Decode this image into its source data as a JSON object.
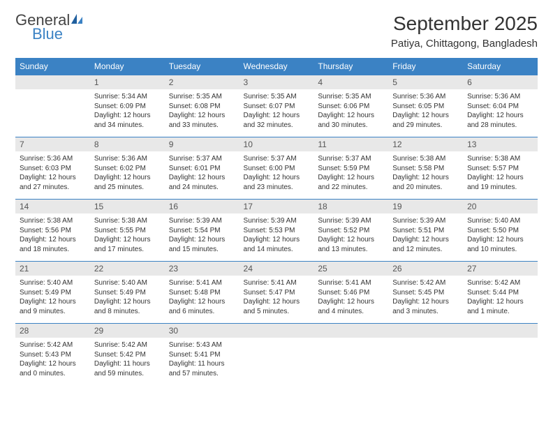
{
  "logo": {
    "general": "General",
    "blue": "Blue"
  },
  "title": "September 2025",
  "location": "Patiya, Chittagong, Bangladesh",
  "colors": {
    "header_bg": "#3b82c4",
    "header_fg": "#ffffff",
    "daynum_bg": "#e8e8e8",
    "text": "#333333"
  },
  "dayNames": [
    "Sunday",
    "Monday",
    "Tuesday",
    "Wednesday",
    "Thursday",
    "Friday",
    "Saturday"
  ],
  "weeks": [
    {
      "nums": [
        "",
        "1",
        "2",
        "3",
        "4",
        "5",
        "6"
      ],
      "cells": [
        "",
        "Sunrise: 5:34 AM\nSunset: 6:09 PM\nDaylight: 12 hours and 34 minutes.",
        "Sunrise: 5:35 AM\nSunset: 6:08 PM\nDaylight: 12 hours and 33 minutes.",
        "Sunrise: 5:35 AM\nSunset: 6:07 PM\nDaylight: 12 hours and 32 minutes.",
        "Sunrise: 5:35 AM\nSunset: 6:06 PM\nDaylight: 12 hours and 30 minutes.",
        "Sunrise: 5:36 AM\nSunset: 6:05 PM\nDaylight: 12 hours and 29 minutes.",
        "Sunrise: 5:36 AM\nSunset: 6:04 PM\nDaylight: 12 hours and 28 minutes."
      ]
    },
    {
      "nums": [
        "7",
        "8",
        "9",
        "10",
        "11",
        "12",
        "13"
      ],
      "cells": [
        "Sunrise: 5:36 AM\nSunset: 6:03 PM\nDaylight: 12 hours and 27 minutes.",
        "Sunrise: 5:36 AM\nSunset: 6:02 PM\nDaylight: 12 hours and 25 minutes.",
        "Sunrise: 5:37 AM\nSunset: 6:01 PM\nDaylight: 12 hours and 24 minutes.",
        "Sunrise: 5:37 AM\nSunset: 6:00 PM\nDaylight: 12 hours and 23 minutes.",
        "Sunrise: 5:37 AM\nSunset: 5:59 PM\nDaylight: 12 hours and 22 minutes.",
        "Sunrise: 5:38 AM\nSunset: 5:58 PM\nDaylight: 12 hours and 20 minutes.",
        "Sunrise: 5:38 AM\nSunset: 5:57 PM\nDaylight: 12 hours and 19 minutes."
      ]
    },
    {
      "nums": [
        "14",
        "15",
        "16",
        "17",
        "18",
        "19",
        "20"
      ],
      "cells": [
        "Sunrise: 5:38 AM\nSunset: 5:56 PM\nDaylight: 12 hours and 18 minutes.",
        "Sunrise: 5:38 AM\nSunset: 5:55 PM\nDaylight: 12 hours and 17 minutes.",
        "Sunrise: 5:39 AM\nSunset: 5:54 PM\nDaylight: 12 hours and 15 minutes.",
        "Sunrise: 5:39 AM\nSunset: 5:53 PM\nDaylight: 12 hours and 14 minutes.",
        "Sunrise: 5:39 AM\nSunset: 5:52 PM\nDaylight: 12 hours and 13 minutes.",
        "Sunrise: 5:39 AM\nSunset: 5:51 PM\nDaylight: 12 hours and 12 minutes.",
        "Sunrise: 5:40 AM\nSunset: 5:50 PM\nDaylight: 12 hours and 10 minutes."
      ]
    },
    {
      "nums": [
        "21",
        "22",
        "23",
        "24",
        "25",
        "26",
        "27"
      ],
      "cells": [
        "Sunrise: 5:40 AM\nSunset: 5:49 PM\nDaylight: 12 hours and 9 minutes.",
        "Sunrise: 5:40 AM\nSunset: 5:49 PM\nDaylight: 12 hours and 8 minutes.",
        "Sunrise: 5:41 AM\nSunset: 5:48 PM\nDaylight: 12 hours and 6 minutes.",
        "Sunrise: 5:41 AM\nSunset: 5:47 PM\nDaylight: 12 hours and 5 minutes.",
        "Sunrise: 5:41 AM\nSunset: 5:46 PM\nDaylight: 12 hours and 4 minutes.",
        "Sunrise: 5:42 AM\nSunset: 5:45 PM\nDaylight: 12 hours and 3 minutes.",
        "Sunrise: 5:42 AM\nSunset: 5:44 PM\nDaylight: 12 hours and 1 minute."
      ]
    },
    {
      "nums": [
        "28",
        "29",
        "30",
        "",
        "",
        "",
        ""
      ],
      "cells": [
        "Sunrise: 5:42 AM\nSunset: 5:43 PM\nDaylight: 12 hours and 0 minutes.",
        "Sunrise: 5:42 AM\nSunset: 5:42 PM\nDaylight: 11 hours and 59 minutes.",
        "Sunrise: 5:43 AM\nSunset: 5:41 PM\nDaylight: 11 hours and 57 minutes.",
        "",
        "",
        "",
        ""
      ]
    }
  ]
}
